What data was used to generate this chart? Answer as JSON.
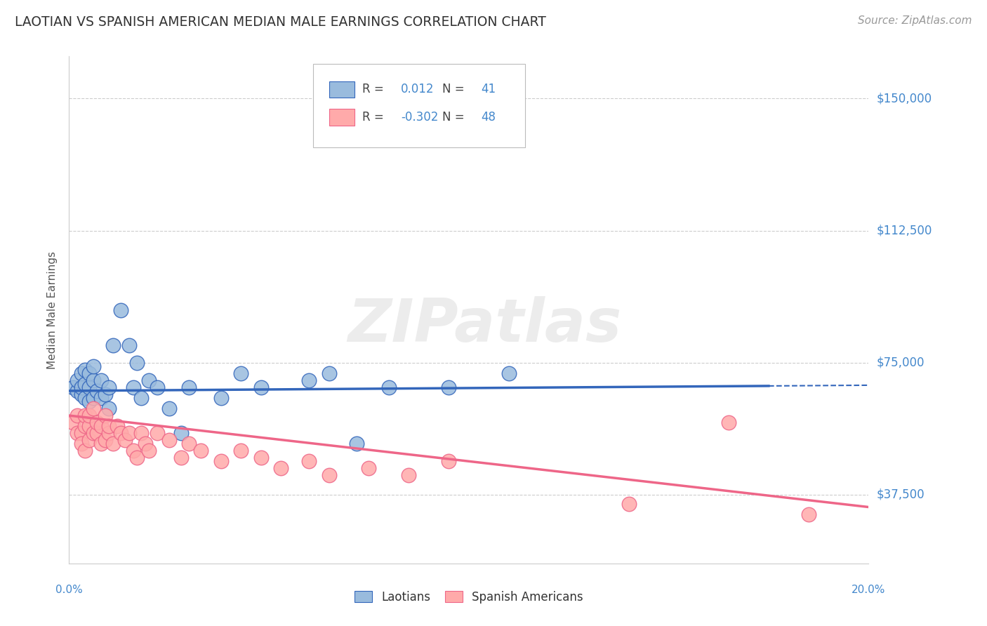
{
  "title": "LAOTIAN VS SPANISH AMERICAN MEDIAN MALE EARNINGS CORRELATION CHART",
  "source": "Source: ZipAtlas.com",
  "ylabel": "Median Male Earnings",
  "xlim": [
    0.0,
    0.2
  ],
  "ylim": [
    18000,
    162000
  ],
  "yticks": [
    37500,
    75000,
    112500,
    150000
  ],
  "ytick_labels": [
    "$37,500",
    "$75,000",
    "$112,500",
    "$150,000"
  ],
  "blue_color": "#99BBDD",
  "pink_color": "#FFAAAA",
  "blue_line_color": "#3366BB",
  "pink_line_color": "#EE6688",
  "grid_color": "#CCCCCC",
  "title_color": "#333333",
  "axis_label_color": "#555555",
  "tick_label_color": "#4488CC",
  "source_color": "#999999",
  "R_blue": 0.012,
  "N_blue": 41,
  "R_pink": -0.302,
  "N_pink": 48,
  "watermark": "ZIPatlas",
  "laotian_x": [
    0.001,
    0.002,
    0.002,
    0.003,
    0.003,
    0.003,
    0.004,
    0.004,
    0.004,
    0.005,
    0.005,
    0.005,
    0.006,
    0.006,
    0.006,
    0.007,
    0.008,
    0.008,
    0.009,
    0.01,
    0.01,
    0.011,
    0.013,
    0.015,
    0.016,
    0.017,
    0.018,
    0.02,
    0.022,
    0.025,
    0.028,
    0.03,
    0.038,
    0.043,
    0.048,
    0.06,
    0.065,
    0.072,
    0.08,
    0.095,
    0.11
  ],
  "laotian_y": [
    68000,
    67000,
    70000,
    66000,
    68000,
    72000,
    65000,
    69000,
    73000,
    64000,
    68000,
    72000,
    65000,
    70000,
    74000,
    67000,
    65000,
    70000,
    66000,
    68000,
    62000,
    80000,
    90000,
    80000,
    68000,
    75000,
    65000,
    70000,
    68000,
    62000,
    55000,
    68000,
    65000,
    72000,
    68000,
    70000,
    72000,
    52000,
    68000,
    68000,
    72000
  ],
  "spanish_x": [
    0.001,
    0.002,
    0.002,
    0.003,
    0.003,
    0.004,
    0.004,
    0.004,
    0.005,
    0.005,
    0.005,
    0.006,
    0.006,
    0.007,
    0.007,
    0.008,
    0.008,
    0.009,
    0.009,
    0.01,
    0.01,
    0.011,
    0.012,
    0.013,
    0.014,
    0.015,
    0.016,
    0.017,
    0.018,
    0.019,
    0.02,
    0.022,
    0.025,
    0.028,
    0.03,
    0.033,
    0.038,
    0.043,
    0.048,
    0.053,
    0.06,
    0.065,
    0.075,
    0.085,
    0.095,
    0.14,
    0.165,
    0.185
  ],
  "spanish_y": [
    58000,
    55000,
    60000,
    55000,
    52000,
    57000,
    60000,
    50000,
    57000,
    53000,
    60000,
    55000,
    62000,
    55000,
    58000,
    52000,
    57000,
    53000,
    60000,
    55000,
    57000,
    52000,
    57000,
    55000,
    53000,
    55000,
    50000,
    48000,
    55000,
    52000,
    50000,
    55000,
    53000,
    48000,
    52000,
    50000,
    47000,
    50000,
    48000,
    45000,
    47000,
    43000,
    45000,
    43000,
    47000,
    35000,
    58000,
    32000
  ]
}
